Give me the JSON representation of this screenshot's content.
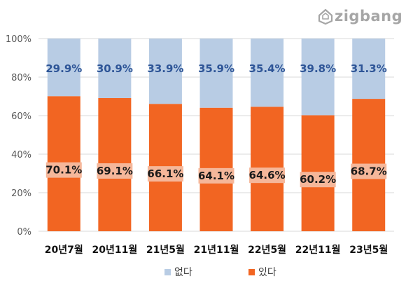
{
  "logo": {
    "text": "zigbang"
  },
  "chart_data": {
    "type": "bar",
    "stacked": true,
    "percent_stacked": true,
    "categories": [
      "20년7월",
      "20년11월",
      "21년5월",
      "21년11월",
      "22년5월",
      "22년11월",
      "23년5월"
    ],
    "series": [
      {
        "name": "있다",
        "color": "#f26522",
        "values": [
          70.1,
          69.1,
          66.1,
          64.1,
          64.6,
          60.2,
          68.7
        ]
      },
      {
        "name": "없다",
        "color": "#b8cce4",
        "values": [
          29.9,
          30.9,
          33.9,
          35.9,
          35.4,
          39.8,
          31.3
        ]
      }
    ],
    "value_suffix": "%",
    "label_colors": {
      "있다": "#1a1a1a",
      "없다": "#2e5597"
    },
    "label_bg": "#f5b79a",
    "ylim": [
      0,
      100
    ],
    "y_ticks": [
      "0%",
      "20%",
      "40%",
      "60%",
      "80%",
      "100%"
    ],
    "grid": true,
    "grid_color": "#d9d9d9",
    "legend": {
      "placement": "bottom",
      "order": [
        "없다",
        "있다"
      ]
    }
  }
}
